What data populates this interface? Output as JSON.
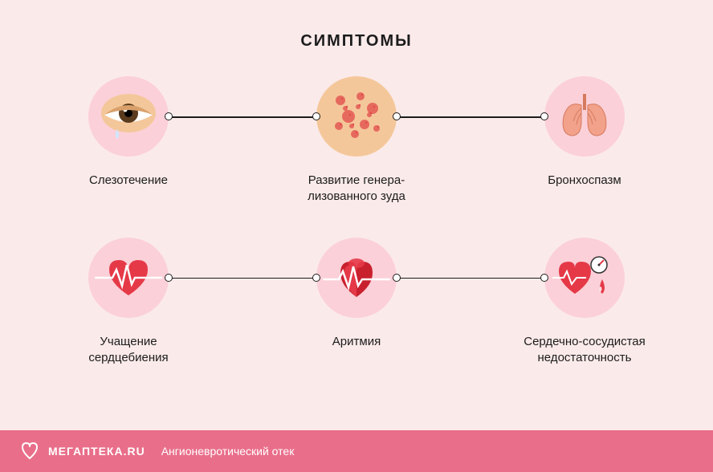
{
  "title": "СИМПТОМЫ",
  "title_fontsize": 20,
  "title_color": "#1c1c1c",
  "background_color": "#fbeaea",
  "circle_bg": "#fbd0d8",
  "connector_color": "#1c1c1c",
  "label_color": "#1c1c1c",
  "label_fontsize": 15,
  "footer": {
    "bg": "#e96e8a",
    "brand": "МЕГАПТЕКА.RU",
    "subtitle": "Ангионевротический отек",
    "brand_fontsize": 14,
    "subtitle_fontsize": 14
  },
  "rows": [
    {
      "items": [
        {
          "label": "Слезотечение",
          "icon": "eye-tear"
        },
        {
          "label": "Развитие генера-\nлизованного зуда",
          "icon": "rash"
        },
        {
          "label": "Бронхоспазм",
          "icon": "lungs"
        }
      ]
    },
    {
      "items": [
        {
          "label": "Учащение\nсердцебиения",
          "icon": "heart-rate"
        },
        {
          "label": "Аритмия",
          "icon": "arrhythmia"
        },
        {
          "label": "Сердечно-сосудистая\nнедостаточность",
          "icon": "heart-drop"
        }
      ]
    }
  ],
  "icon_colors": {
    "skin": "#f4c79a",
    "eye_white": "#ffffff",
    "eye_iris": "#5a3b1e",
    "eye_lid": "#d9a06b",
    "tear": "#cfe8ff",
    "rash_spot": "#e24a4a",
    "lung": "#f2a18a",
    "lung_line": "#d67a5f",
    "heart": "#e53947",
    "heart_dark": "#c9202e",
    "ecg_line": "#ffffff",
    "gauge": "#ffffff",
    "gauge_needle": "#e53947",
    "drop": "#e53947",
    "drop_hl": "#ffffff"
  }
}
